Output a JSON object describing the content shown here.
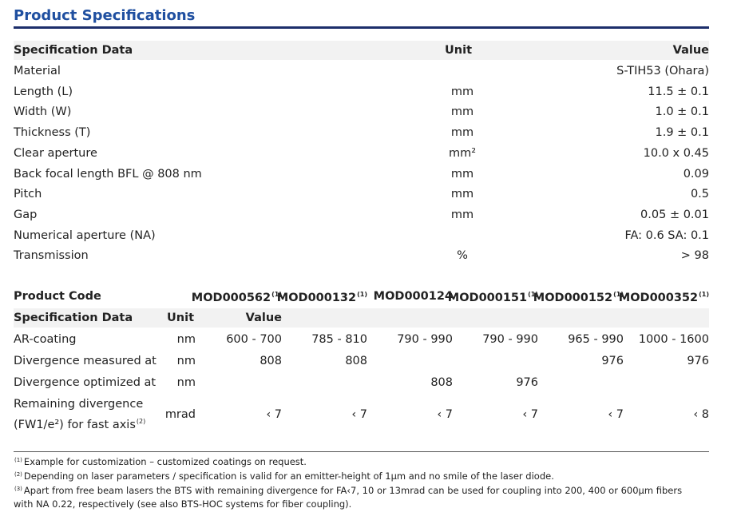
{
  "title": "Product Specifications",
  "table1": {
    "header": [
      "Specification Data",
      "Unit",
      "Value"
    ],
    "rows": [
      {
        "label": "Material",
        "value": "S-TIH53 (Ohara)"
      },
      {
        "label": "Length (L)",
        "unit": "mm",
        "value": "11.5 ± 0.1"
      },
      {
        "label": "Width (W)",
        "unit": "mm",
        "value": "1.0 ± 0.1"
      },
      {
        "label": "Thickness (T)",
        "unit": "mm",
        "value": "1.9 ± 0.1"
      },
      {
        "label": "Clear aperture",
        "unit": "mm²",
        "value": "10.0 x 0.45"
      },
      {
        "label": "Back focal length BFL @ 808 nm",
        "unit": "mm",
        "value": "0.09"
      },
      {
        "label": "Pitch",
        "unit": "mm",
        "value": "0.5"
      },
      {
        "label": "Gap",
        "unit": "mm",
        "value": "0.05 ± 0.01"
      },
      {
        "label": "Numerical aperture (NA)",
        "value": "FA: 0.6  SA: 0.1"
      },
      {
        "label": "Transmission",
        "unit": "%",
        "value": "> 98"
      }
    ]
  },
  "table2": {
    "code_label": "Product Code",
    "codes": [
      {
        "code": "MOD000562",
        "note": "(1)"
      },
      {
        "code": "MOD000132",
        "note": "(1)"
      },
      {
        "code": "MOD000124"
      },
      {
        "code": "MOD000151",
        "note": "(1)"
      },
      {
        "code": "MOD000152",
        "note": "(1)"
      },
      {
        "code": "MOD000352",
        "note": "(1)"
      }
    ],
    "header": [
      "Specification Data",
      "Unit",
      "Value"
    ],
    "rows": [
      {
        "label": "AR-coating",
        "unit": "nm",
        "values": [
          "600 - 700",
          "785 - 810",
          "790 - 990",
          "790 - 990",
          "965 - 990",
          "1000 - 1600"
        ]
      },
      {
        "label": "Divergence measured at",
        "unit": "nm",
        "values": [
          "808",
          "808",
          null,
          null,
          "976",
          "976"
        ]
      },
      {
        "label": "Divergence optimized at",
        "unit": "nm",
        "values": [
          null,
          null,
          "808",
          "976",
          null,
          null
        ]
      },
      {
        "label": "Remaining divergence (FW1/e²) for fast axis",
        "note": "(2)",
        "unit": "mrad",
        "values": [
          "‹ 7",
          "‹ 7",
          "‹ 7",
          "‹ 7",
          "‹ 7",
          "‹ 8"
        ]
      }
    ]
  },
  "footnotes": [
    {
      "mark": "(1)",
      "text": "Example for customization – customized coatings on request."
    },
    {
      "mark": "(2)",
      "text": "Depending on laser parameters / specification is valid for an emitter-height of 1µm and no smile of the laser diode."
    },
    {
      "mark": "(3)",
      "text": "Apart from free beam lasers the BTS with remaining divergence for FA‹7, 10 or 13mrad can be used for coupling into 200, 400 or 600µm fibers with NA 0.22, respectively (see also BTS-HOC systems for fiber coupling)."
    }
  ]
}
